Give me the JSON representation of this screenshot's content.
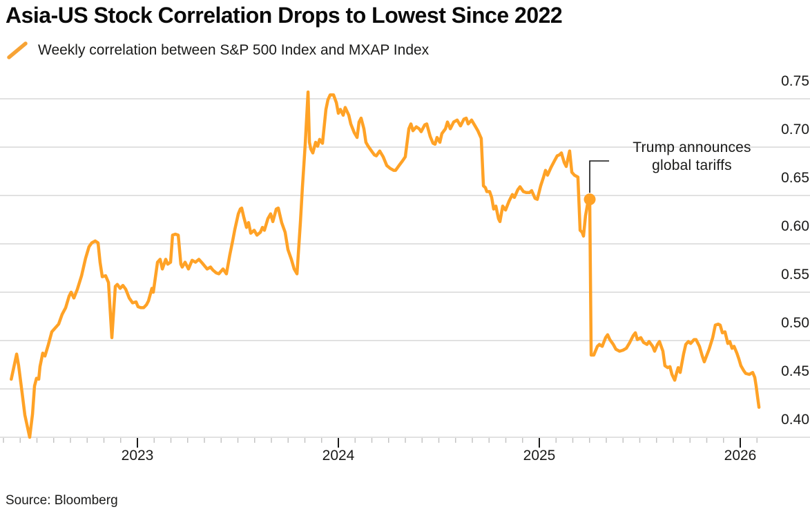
{
  "header": {
    "title": "Asia-US Stock Correlation Drops to Lowest Since 2022"
  },
  "legend": {
    "label": "Weekly correlation between S&P 500 Index and MXAP Index",
    "swatch_icon": "orange-slash-icon"
  },
  "footer": {
    "source": "Source: Bloomberg"
  },
  "chart_data": {
    "type": "line",
    "title": "Asia-US Stock Correlation Drops to Lowest Since 2022",
    "xlabel": "",
    "ylabel": "",
    "grid": "horizontal",
    "legend_position": "top-left",
    "y_axis_side": "right",
    "xlim": [
      2022.33,
      2026.25
    ],
    "ylim": [
      0.385,
      0.765
    ],
    "x_ticks": [
      {
        "value": 2023,
        "label": "2023"
      },
      {
        "value": 2024,
        "label": "2024"
      },
      {
        "value": 2025,
        "label": "2025"
      },
      {
        "value": 2026,
        "label": "2026"
      }
    ],
    "y_ticks": [
      {
        "value": 0.75,
        "label": "0.75"
      },
      {
        "value": 0.7,
        "label": "0.70"
      },
      {
        "value": 0.65,
        "label": "0.65"
      },
      {
        "value": 0.6,
        "label": "0.60"
      },
      {
        "value": 0.55,
        "label": "0.55"
      },
      {
        "value": 0.5,
        "label": "0.50"
      },
      {
        "value": 0.45,
        "label": "0.45"
      },
      {
        "value": 0.4,
        "label": "0.40"
      }
    ],
    "colors": {
      "line": "#ffa226",
      "grid": "#d7d7d7",
      "minor_tick": "#c4c4c4",
      "text": "#1a1a19"
    },
    "annotation": {
      "line1": "Trump announces",
      "line2": "global tariffs",
      "x": 2025.251,
      "y": 0.646
    },
    "series": [
      {
        "name": "Weekly correlation between S&P 500 Index and MXAP Index",
        "color": "#ffa226",
        "points": [
          [
            2022.372,
            0.46
          ],
          [
            2022.399,
            0.486
          ],
          [
            2022.409,
            0.474
          ],
          [
            2022.426,
            0.446
          ],
          [
            2022.44,
            0.423
          ],
          [
            2022.464,
            0.4
          ],
          [
            2022.478,
            0.424
          ],
          [
            2022.488,
            0.453
          ],
          [
            2022.498,
            0.461
          ],
          [
            2022.509,
            0.46
          ],
          [
            2022.515,
            0.473
          ],
          [
            2022.529,
            0.487
          ],
          [
            2022.54,
            0.484
          ],
          [
            2022.557,
            0.496
          ],
          [
            2022.574,
            0.509
          ],
          [
            2022.591,
            0.513
          ],
          [
            2022.608,
            0.517
          ],
          [
            2022.625,
            0.527
          ],
          [
            2022.643,
            0.534
          ],
          [
            2022.66,
            0.546
          ],
          [
            2022.67,
            0.55
          ],
          [
            2022.684,
            0.544
          ],
          [
            2022.701,
            0.553
          ],
          [
            2022.722,
            0.567
          ],
          [
            2022.742,
            0.585
          ],
          [
            2022.759,
            0.597
          ],
          [
            2022.773,
            0.601
          ],
          [
            2022.79,
            0.603
          ],
          [
            2022.804,
            0.601
          ],
          [
            2022.814,
            0.581
          ],
          [
            2022.825,
            0.566
          ],
          [
            2022.842,
            0.567
          ],
          [
            2022.856,
            0.56
          ],
          [
            2022.873,
            0.503
          ],
          [
            2022.89,
            0.556
          ],
          [
            2022.9,
            0.558
          ],
          [
            2022.914,
            0.554
          ],
          [
            2022.928,
            0.557
          ],
          [
            2022.942,
            0.553
          ],
          [
            2022.959,
            0.544
          ],
          [
            2022.976,
            0.539
          ],
          [
            2022.993,
            0.54
          ],
          [
            2023.003,
            0.535
          ],
          [
            2023.017,
            0.534
          ],
          [
            2023.031,
            0.534
          ],
          [
            2023.045,
            0.537
          ],
          [
            2023.055,
            0.541
          ],
          [
            2023.072,
            0.554
          ],
          [
            2023.079,
            0.55
          ],
          [
            2023.1,
            0.581
          ],
          [
            2023.113,
            0.584
          ],
          [
            2023.124,
            0.574
          ],
          [
            2023.141,
            0.584
          ],
          [
            2023.151,
            0.579
          ],
          [
            2023.165,
            0.581
          ],
          [
            2023.175,
            0.609
          ],
          [
            2023.189,
            0.61
          ],
          [
            2023.203,
            0.609
          ],
          [
            2023.216,
            0.579
          ],
          [
            2023.223,
            0.576
          ],
          [
            2023.237,
            0.581
          ],
          [
            2023.254,
            0.574
          ],
          [
            2023.272,
            0.583
          ],
          [
            2023.289,
            0.581
          ],
          [
            2023.306,
            0.584
          ],
          [
            2023.323,
            0.58
          ],
          [
            2023.347,
            0.574
          ],
          [
            2023.364,
            0.576
          ],
          [
            2023.375,
            0.573
          ],
          [
            2023.392,
            0.57
          ],
          [
            2023.405,
            0.569
          ],
          [
            2023.426,
            0.574
          ],
          [
            2023.443,
            0.569
          ],
          [
            2023.46,
            0.589
          ],
          [
            2023.474,
            0.603
          ],
          [
            2023.485,
            0.615
          ],
          [
            2023.502,
            0.631
          ],
          [
            2023.512,
            0.636
          ],
          [
            2023.519,
            0.637
          ],
          [
            2023.529,
            0.628
          ],
          [
            2023.543,
            0.617
          ],
          [
            2023.553,
            0.622
          ],
          [
            2023.564,
            0.611
          ],
          [
            2023.581,
            0.614
          ],
          [
            2023.595,
            0.609
          ],
          [
            2023.612,
            0.612
          ],
          [
            2023.622,
            0.617
          ],
          [
            2023.632,
            0.614
          ],
          [
            2023.649,
            0.626
          ],
          [
            2023.663,
            0.631
          ],
          [
            2023.674,
            0.623
          ],
          [
            2023.691,
            0.636
          ],
          [
            2023.701,
            0.637
          ],
          [
            2023.718,
            0.622
          ],
          [
            2023.735,
            0.612
          ],
          [
            2023.749,
            0.594
          ],
          [
            2023.766,
            0.584
          ],
          [
            2023.78,
            0.574
          ],
          [
            2023.794,
            0.569
          ],
          [
            2023.811,
            0.622
          ],
          [
            2023.821,
            0.658
          ],
          [
            2023.835,
            0.703
          ],
          [
            2023.849,
            0.757
          ],
          [
            2023.856,
            0.705
          ],
          [
            2023.863,
            0.698
          ],
          [
            2023.873,
            0.694
          ],
          [
            2023.887,
            0.705
          ],
          [
            2023.897,
            0.701
          ],
          [
            2023.907,
            0.708
          ],
          [
            2023.921,
            0.704
          ],
          [
            2023.938,
            0.739
          ],
          [
            2023.948,
            0.749
          ],
          [
            2023.959,
            0.754
          ],
          [
            2023.976,
            0.754
          ],
          [
            2023.99,
            0.746
          ],
          [
            2024.0,
            0.735
          ],
          [
            2024.01,
            0.739
          ],
          [
            2024.024,
            0.733
          ],
          [
            2024.034,
            0.741
          ],
          [
            2024.052,
            0.733
          ],
          [
            2024.062,
            0.724
          ],
          [
            2024.079,
            0.715
          ],
          [
            2024.093,
            0.71
          ],
          [
            2024.103,
            0.726
          ],
          [
            2024.113,
            0.73
          ],
          [
            2024.127,
            0.719
          ],
          [
            2024.137,
            0.705
          ],
          [
            2024.148,
            0.701
          ],
          [
            2024.165,
            0.696
          ],
          [
            2024.179,
            0.692
          ],
          [
            2024.189,
            0.691
          ],
          [
            2024.206,
            0.696
          ],
          [
            2024.223,
            0.69
          ],
          [
            2024.241,
            0.681
          ],
          [
            2024.258,
            0.678
          ],
          [
            2024.275,
            0.676
          ],
          [
            2024.285,
            0.676
          ],
          [
            2024.302,
            0.681
          ],
          [
            2024.32,
            0.686
          ],
          [
            2024.333,
            0.69
          ],
          [
            2024.351,
            0.719
          ],
          [
            2024.361,
            0.724
          ],
          [
            2024.371,
            0.717
          ],
          [
            2024.388,
            0.721
          ],
          [
            2024.402,
            0.719
          ],
          [
            2024.412,
            0.716
          ],
          [
            2024.43,
            0.723
          ],
          [
            2024.44,
            0.724
          ],
          [
            2024.457,
            0.711
          ],
          [
            2024.471,
            0.704
          ],
          [
            2024.481,
            0.703
          ],
          [
            2024.491,
            0.71
          ],
          [
            2024.505,
            0.705
          ],
          [
            2024.515,
            0.714
          ],
          [
            2024.533,
            0.719
          ],
          [
            2024.543,
            0.726
          ],
          [
            2024.557,
            0.719
          ],
          [
            2024.574,
            0.726
          ],
          [
            2024.591,
            0.728
          ],
          [
            2024.608,
            0.722
          ],
          [
            2024.625,
            0.729
          ],
          [
            2024.636,
            0.73
          ],
          [
            2024.646,
            0.724
          ],
          [
            2024.663,
            0.728
          ],
          [
            2024.68,
            0.722
          ],
          [
            2024.694,
            0.717
          ],
          [
            2024.711,
            0.709
          ],
          [
            2024.722,
            0.66
          ],
          [
            2024.732,
            0.658
          ],
          [
            2024.739,
            0.654
          ],
          [
            2024.753,
            0.654
          ],
          [
            2024.763,
            0.648
          ],
          [
            2024.773,
            0.636
          ],
          [
            2024.784,
            0.639
          ],
          [
            2024.797,
            0.626
          ],
          [
            2024.804,
            0.623
          ],
          [
            2024.818,
            0.639
          ],
          [
            2024.832,
            0.635
          ],
          [
            2024.849,
            0.644
          ],
          [
            2024.866,
            0.651
          ],
          [
            2024.876,
            0.648
          ],
          [
            2024.893,
            0.656
          ],
          [
            2024.904,
            0.659
          ],
          [
            2024.921,
            0.654
          ],
          [
            2024.935,
            0.653
          ],
          [
            2024.952,
            0.653
          ],
          [
            2024.962,
            0.655
          ],
          [
            2024.979,
            0.647
          ],
          [
            2024.99,
            0.646
          ],
          [
            2025.007,
            0.66
          ],
          [
            2025.021,
            0.669
          ],
          [
            2025.031,
            0.676
          ],
          [
            2025.041,
            0.671
          ],
          [
            2025.058,
            0.679
          ],
          [
            2025.076,
            0.686
          ],
          [
            2025.089,
            0.691
          ],
          [
            2025.1,
            0.692
          ],
          [
            2025.11,
            0.694
          ],
          [
            2025.124,
            0.684
          ],
          [
            2025.134,
            0.68
          ],
          [
            2025.151,
            0.696
          ],
          [
            2025.162,
            0.674
          ],
          [
            2025.175,
            0.671
          ],
          [
            2025.192,
            0.669
          ],
          [
            2025.203,
            0.614
          ],
          [
            2025.213,
            0.612
          ],
          [
            2025.22,
            0.608
          ],
          [
            2025.23,
            0.629
          ],
          [
            2025.241,
            0.642
          ],
          [
            2025.251,
            0.646
          ],
          [
            2025.258,
            0.485
          ],
          [
            2025.271,
            0.485
          ],
          [
            2025.289,
            0.494
          ],
          [
            2025.299,
            0.496
          ],
          [
            2025.313,
            0.494
          ],
          [
            2025.33,
            0.503
          ],
          [
            2025.34,
            0.506
          ],
          [
            2025.351,
            0.501
          ],
          [
            2025.368,
            0.496
          ],
          [
            2025.381,
            0.491
          ],
          [
            2025.399,
            0.489
          ],
          [
            2025.416,
            0.49
          ],
          [
            2025.433,
            0.492
          ],
          [
            2025.45,
            0.498
          ],
          [
            2025.467,
            0.505
          ],
          [
            2025.478,
            0.508
          ],
          [
            2025.488,
            0.501
          ],
          [
            2025.505,
            0.503
          ],
          [
            2025.519,
            0.498
          ],
          [
            2025.536,
            0.496
          ],
          [
            2025.546,
            0.499
          ],
          [
            2025.564,
            0.494
          ],
          [
            2025.574,
            0.489
          ],
          [
            2025.588,
            0.496
          ],
          [
            2025.598,
            0.499
          ],
          [
            2025.615,
            0.489
          ],
          [
            2025.625,
            0.474
          ],
          [
            2025.639,
            0.472
          ],
          [
            2025.65,
            0.473
          ],
          [
            2025.66,
            0.465
          ],
          [
            2025.674,
            0.459
          ],
          [
            2025.684,
            0.467
          ],
          [
            2025.691,
            0.472
          ],
          [
            2025.701,
            0.467
          ],
          [
            2025.718,
            0.486
          ],
          [
            2025.729,
            0.496
          ],
          [
            2025.742,
            0.499
          ],
          [
            2025.753,
            0.497
          ],
          [
            2025.77,
            0.501
          ],
          [
            2025.78,
            0.501
          ],
          [
            2025.797,
            0.494
          ],
          [
            2025.811,
            0.484
          ],
          [
            2025.821,
            0.478
          ],
          [
            2025.845,
            0.491
          ],
          [
            2025.863,
            0.503
          ],
          [
            2025.876,
            0.516
          ],
          [
            2025.89,
            0.517
          ],
          [
            2025.9,
            0.516
          ],
          [
            2025.911,
            0.508
          ],
          [
            2025.924,
            0.509
          ],
          [
            2025.938,
            0.497
          ],
          [
            2025.948,
            0.499
          ],
          [
            2025.959,
            0.492
          ],
          [
            2025.969,
            0.494
          ],
          [
            2025.983,
            0.487
          ],
          [
            2025.993,
            0.481
          ],
          [
            2026.003,
            0.474
          ],
          [
            2026.017,
            0.469
          ],
          [
            2026.027,
            0.466
          ],
          [
            2026.045,
            0.465
          ],
          [
            2026.062,
            0.467
          ],
          [
            2026.072,
            0.462
          ],
          [
            2026.079,
            0.453
          ],
          [
            2026.086,
            0.442
          ],
          [
            2026.093,
            0.431
          ]
        ]
      }
    ]
  }
}
